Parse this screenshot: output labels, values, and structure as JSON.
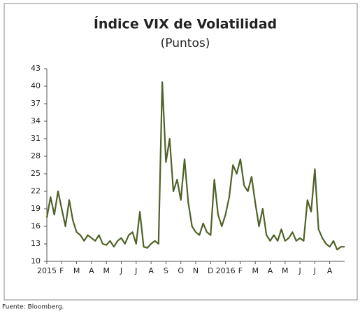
{
  "chart_data": {
    "type": "line",
    "title": "Índice VIX de Volatilidad",
    "subtitle": "(Puntos)",
    "source": "Fuente: Bloomberg.",
    "x": [
      0,
      0.25,
      0.5,
      0.75,
      1,
      1.25,
      1.5,
      1.75,
      2,
      2.25,
      2.5,
      2.75,
      3,
      3.25,
      3.5,
      3.75,
      4,
      4.25,
      4.5,
      4.75,
      5,
      5.25,
      5.5,
      5.75,
      6,
      6.25,
      6.5,
      6.75,
      7,
      7.25,
      7.5,
      7.75,
      8,
      8.25,
      8.5,
      8.75,
      9,
      9.25,
      9.5,
      9.75,
      10,
      10.25,
      10.5,
      10.75,
      11,
      11.25,
      11.5,
      11.75,
      12,
      12.25,
      12.5,
      12.75,
      13,
      13.25,
      13.5,
      13.75,
      14,
      14.25,
      14.5,
      14.75,
      15,
      15.25,
      15.5,
      15.75,
      16,
      16.25,
      16.5,
      16.75,
      17,
      17.25,
      17.5,
      17.75,
      18,
      18.25,
      18.5,
      18.75,
      19,
      19.25,
      19.5,
      19.75,
      20
    ],
    "series": [
      {
        "name": "VIX",
        "color": "#4f6228",
        "values": [
          17.5,
          21,
          18,
          22,
          19,
          16,
          20.5,
          17,
          15,
          14.5,
          13.5,
          14.5,
          14,
          13.5,
          14.5,
          13,
          12.8,
          13.5,
          12.5,
          13.5,
          14,
          13,
          14.5,
          15,
          13,
          18.5,
          12.5,
          12.3,
          13,
          13.5,
          13,
          40.7,
          27,
          31,
          22,
          24,
          20.5,
          27.5,
          20,
          16,
          15,
          14.5,
          16.5,
          15,
          14.5,
          24,
          18,
          16,
          18,
          21,
          26.5,
          25,
          27.5,
          23,
          22,
          24.5,
          20,
          16,
          19,
          14.5,
          13.5,
          14.5,
          13.5,
          15.5,
          13.5,
          14,
          15,
          13.5,
          14,
          13.5,
          20.5,
          18.5,
          25.8,
          15.5,
          14,
          13,
          12.5,
          13.5,
          12,
          12.5,
          12.5
        ]
      }
    ],
    "xlim": [
      0,
      20
    ],
    "xticks": [
      {
        "value": 0,
        "label": "2015"
      },
      {
        "value": 1,
        "label": "F"
      },
      {
        "value": 2,
        "label": "M"
      },
      {
        "value": 3,
        "label": "A"
      },
      {
        "value": 4,
        "label": "M"
      },
      {
        "value": 5,
        "label": "J"
      },
      {
        "value": 6,
        "label": "J"
      },
      {
        "value": 7,
        "label": "A"
      },
      {
        "value": 8,
        "label": "S"
      },
      {
        "value": 9,
        "label": "O"
      },
      {
        "value": 10,
        "label": "N"
      },
      {
        "value": 11,
        "label": "D"
      },
      {
        "value": 12,
        "label": "2016"
      },
      {
        "value": 13,
        "label": "F"
      },
      {
        "value": 14,
        "label": "M"
      },
      {
        "value": 15,
        "label": "A"
      },
      {
        "value": 16,
        "label": "M"
      },
      {
        "value": 17,
        "label": "J"
      },
      {
        "value": 18,
        "label": "J"
      },
      {
        "value": 19,
        "label": "A"
      }
    ],
    "ylim": [
      10,
      43
    ],
    "yticks": [
      10,
      13,
      16,
      19,
      22,
      25,
      28,
      31,
      34,
      37,
      40,
      43
    ]
  }
}
